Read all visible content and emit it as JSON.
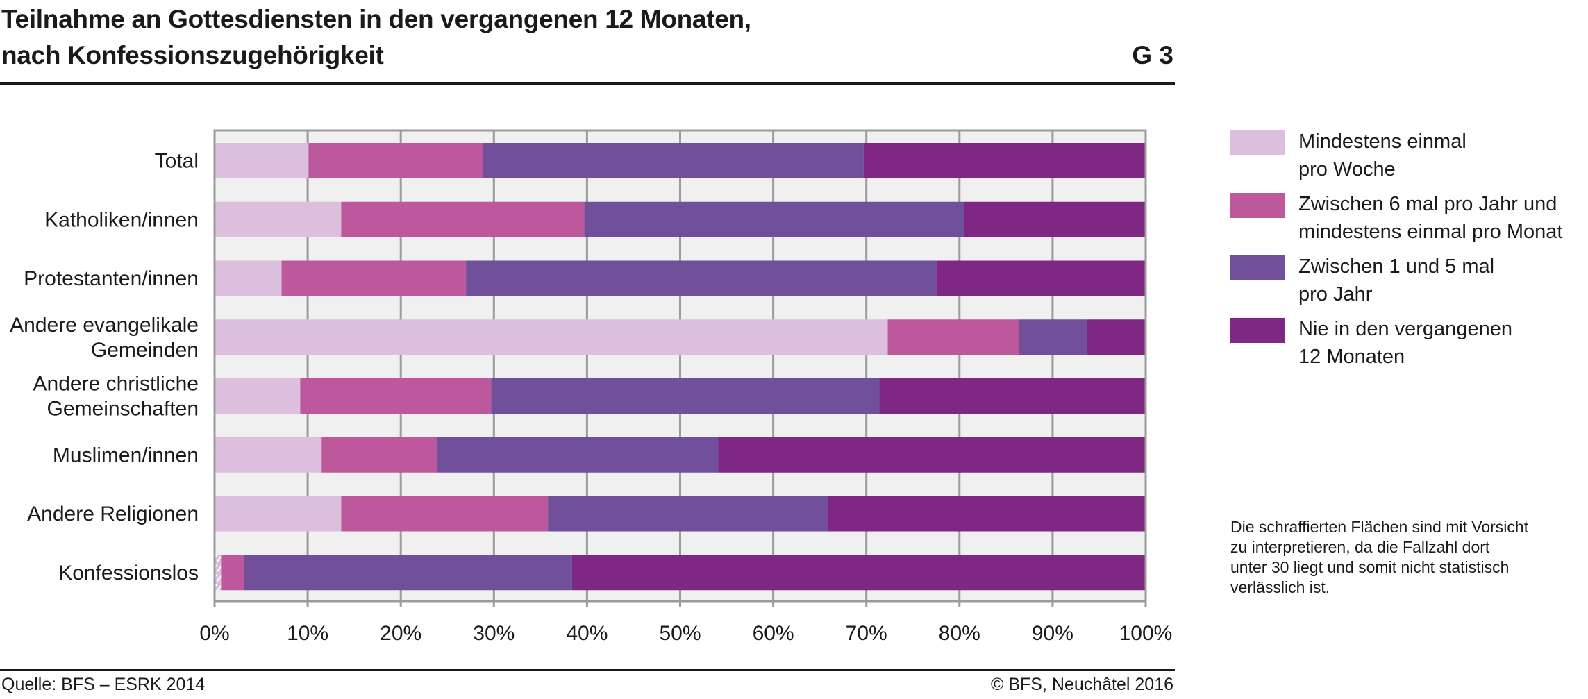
{
  "header": {
    "title_line1": "Teilnahme an Gottesdiensten in den vergangenen 12 Monaten,",
    "title_line2": "nach Konfessionszugehörigkeit",
    "figure_number": "G 3"
  },
  "footer": {
    "source": "Quelle: BFS – ESRK 2014",
    "copyright": "© BFS, Neuchâtel 2016"
  },
  "note": "Die schraffierten Flächen sind mit Vorsicht\nzu interpretieren, da die Fallzahl dort\nunter 30 liegt und somit nicht statistisch\nverlässlich ist.",
  "chart_data": {
    "type": "bar",
    "orientation": "horizontal",
    "stacked": true,
    "title": "Teilnahme an Gottesdiensten in den vergangenen 12 Monaten, nach Konfessionszugehörigkeit",
    "xlabel": "",
    "ylabel": "",
    "xlim": [
      0,
      100
    ],
    "x_ticks": [
      "0%",
      "10%",
      "20%",
      "30%",
      "40%",
      "50%",
      "60%",
      "70%",
      "80%",
      "90%",
      "100%"
    ],
    "grid": "vertical",
    "legend_position": "right",
    "categories": [
      [
        "Total"
      ],
      [
        "Katholiken/innen"
      ],
      [
        "Protestanten/innen"
      ],
      [
        "Andere evangelikale",
        "Gemeinden"
      ],
      [
        "Andere christliche",
        "Gemeinschaften"
      ],
      [
        "Muslimen/innen"
      ],
      [
        "Andere Religionen"
      ],
      [
        "Konfessionslos"
      ]
    ],
    "series": [
      {
        "name": "Mindestens einmal\npro Woche",
        "color": "#dcbedd",
        "values": [
          10.1,
          13.6,
          7.2,
          72.3,
          9.2,
          11.5,
          13.6,
          0.7
        ],
        "hatched": [
          false,
          false,
          false,
          false,
          false,
          false,
          false,
          true
        ]
      },
      {
        "name": "Zwischen 6 mal pro Jahr und\nmindestens einmal pro Monat",
        "color": "#bc589b",
        "values": [
          18.7,
          26.1,
          19.8,
          14.1,
          20.5,
          12.4,
          22.2,
          2.5
        ],
        "hatched": [
          false,
          false,
          false,
          false,
          false,
          false,
          false,
          false
        ]
      },
      {
        "name": "Zwischen 1 und 5 mal\npro Jahr",
        "color": "#71509b",
        "values": [
          40.9,
          40.8,
          50.5,
          7.3,
          41.7,
          30.2,
          30.0,
          35.2
        ],
        "hatched": [
          false,
          false,
          false,
          false,
          false,
          false,
          false,
          false
        ]
      },
      {
        "name": "Nie in den vergangenen\n12 Monaten",
        "color": "#7e2783",
        "values": [
          30.3,
          19.5,
          22.5,
          6.3,
          28.6,
          45.9,
          34.2,
          61.6
        ],
        "hatched": [
          false,
          false,
          false,
          false,
          false,
          false,
          false,
          false
        ]
      }
    ],
    "colors": {
      "plot_background": "#f0f0f0",
      "grid": "#9b9b9b"
    }
  }
}
